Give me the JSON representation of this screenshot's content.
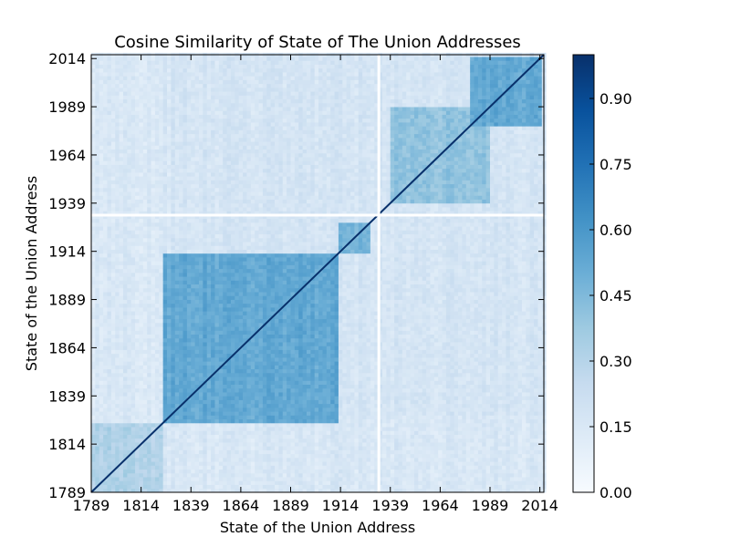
{
  "chart_data": {
    "type": "heatmap",
    "title": "Cosine Similarity of State of The Union Addresses",
    "xlabel": "State of the Union Address",
    "ylabel": "State of the Union Address",
    "x_range": [
      1789,
      2016
    ],
    "y_range": [
      1789,
      2016
    ],
    "x_ticks": [
      "1789",
      "1814",
      "1839",
      "1864",
      "1889",
      "1914",
      "1939",
      "1964",
      "1989",
      "2014"
    ],
    "y_ticks": [
      "1789",
      "1814",
      "1839",
      "1864",
      "1889",
      "1914",
      "1939",
      "1964",
      "1989",
      "2014"
    ],
    "colorbar": {
      "colormap": "Blues",
      "range": [
        0.0,
        1.0
      ],
      "ticks": [
        "0.00",
        "0.15",
        "0.30",
        "0.45",
        "0.60",
        "0.75",
        "0.90"
      ]
    },
    "diagonal_value": 1.0,
    "blocks": [
      {
        "x_from": 1789,
        "x_to": 1826,
        "y_from": 1789,
        "y_to": 1826,
        "value": 0.3
      },
      {
        "x_from": 1826,
        "x_to": 1914,
        "y_from": 1826,
        "y_to": 1914,
        "value": 0.5
      },
      {
        "x_from": 1914,
        "x_to": 1930,
        "y_from": 1914,
        "y_to": 1930,
        "value": 0.45
      },
      {
        "x_from": 1940,
        "x_to": 1990,
        "y_from": 1940,
        "y_to": 1990,
        "value": 0.38
      },
      {
        "x_from": 1980,
        "x_to": 2016,
        "y_from": 1980,
        "y_to": 2016,
        "value": 0.5
      }
    ],
    "gap_years": [
      1933
    ]
  }
}
